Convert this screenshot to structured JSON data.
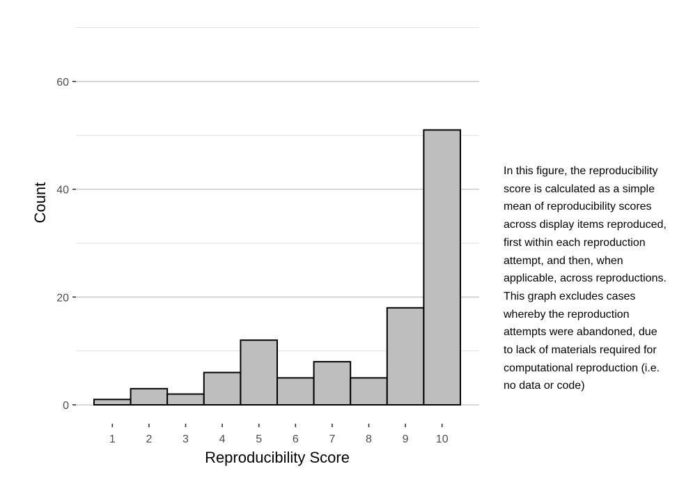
{
  "chart_data": {
    "type": "bar",
    "categories": [
      "1",
      "2",
      "3",
      "4",
      "5",
      "6",
      "7",
      "8",
      "9",
      "10"
    ],
    "values": [
      1,
      3,
      2,
      6,
      12,
      5,
      8,
      5,
      18,
      51
    ],
    "xlabel": "Reproducibility Score",
    "ylabel": "Count",
    "ylim": [
      0,
      70
    ],
    "yticks": [
      0,
      20,
      40,
      60
    ],
    "grid": true,
    "bar_fill": "#bebebe",
    "bar_stroke": "#000000",
    "grid_major_color": "#cccccc",
    "grid_minor_color": "#e0e0e0"
  },
  "caption": "In this figure, the reproducibility\nscore is calculated as a simple\nmean of reproducibility scores\nacross display items reproduced,\nfirst within each reproduction\nattempt, and then, when\napplicable, across reproductions.\nThis graph excludes cases\nwhereby the reproduction\nattempts were abandoned, due\nto lack of materials required for\ncomputational reproduction (i.e.\nno data or code)"
}
